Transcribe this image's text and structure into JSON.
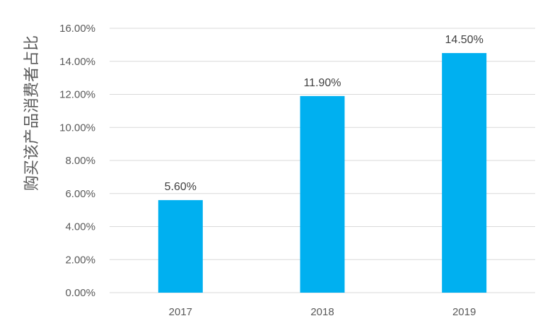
{
  "chart_data": {
    "type": "bar",
    "title": "",
    "xlabel": "",
    "ylabel": "购买该产品消费者占比",
    "categories": [
      "2017",
      "2018",
      "2019"
    ],
    "values": [
      5.6,
      11.9,
      14.5
    ],
    "data_labels": [
      "5.60%",
      "11.90%",
      "14.50%"
    ],
    "ylim": [
      0,
      16
    ],
    "yticks": [
      0,
      2,
      4,
      6,
      8,
      10,
      12,
      14,
      16
    ],
    "ytick_labels": [
      "0.00%",
      "2.00%",
      "4.00%",
      "6.00%",
      "8.00%",
      "10.00%",
      "12.00%",
      "14.00%",
      "16.00%"
    ],
    "bar_color": "#00b0f0",
    "grid": true,
    "legend": "none"
  }
}
